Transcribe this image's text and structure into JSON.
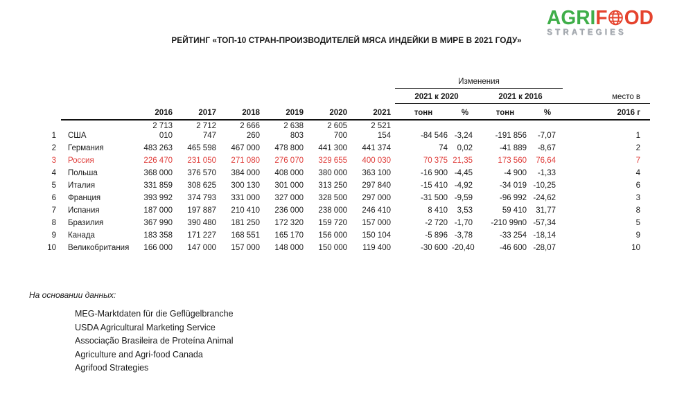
{
  "logo": {
    "agri": "AGRI",
    "f": "F",
    "od": "OD",
    "tagline": "STRATEGIES"
  },
  "title": "РЕЙТИНГ «ТОП-10 СТРАН-ПРОИЗВОДИТЕЛЕЙ МЯСА ИНДЕЙКИ В МИРЕ В 2021 ГОДУ»",
  "table": {
    "changes_header": "Изменения",
    "group_2020": "2021 к 2020",
    "group_2016": "2021 к 2016",
    "place_header_line1": "место в",
    "place_header_line2": "2016 г",
    "year_headers": [
      "2016",
      "2017",
      "2018",
      "2019",
      "2020",
      "2021"
    ],
    "unit_headers": [
      "тонн",
      "%",
      "тонн",
      "%"
    ],
    "rows": [
      {
        "rank": "1",
        "country": "США",
        "values": [
          "2 713\n010",
          "2 712\n747",
          "2 666\n260",
          "2 638\n803",
          "2 605\n700",
          "2 521\n154"
        ],
        "changes": [
          "-84 546",
          "-3,24",
          "-191 856",
          "-7,07"
        ],
        "place": "1",
        "highlighted": false
      },
      {
        "rank": "2",
        "country": "Германия",
        "values": [
          "483 263",
          "465 598",
          "467 000",
          "478 800",
          "441 300",
          "441 374"
        ],
        "changes": [
          "74",
          "0,02",
          "-41 889",
          "-8,67"
        ],
        "place": "2",
        "highlighted": false
      },
      {
        "rank": "3",
        "country": "Россия",
        "values": [
          "226 470",
          "231 050",
          "271 080",
          "276 070",
          "329 655",
          "400 030"
        ],
        "changes": [
          "70 375",
          "21,35",
          "173 560",
          "76,64"
        ],
        "place": "7",
        "highlighted": true
      },
      {
        "rank": "4",
        "country": "Польша",
        "values": [
          "368 000",
          "376 570",
          "384 000",
          "408 000",
          "380 000",
          "363 100"
        ],
        "changes": [
          "-16 900",
          "-4,45",
          "-4 900",
          "-1,33"
        ],
        "place": "4",
        "highlighted": false
      },
      {
        "rank": "5",
        "country": "Италия",
        "values": [
          "331 859",
          "308 625",
          "300 130",
          "301 000",
          "313 250",
          "297 840"
        ],
        "changes": [
          "-15 410",
          "-4,92",
          "-34 019",
          "-10,25"
        ],
        "place": "6",
        "highlighted": false
      },
      {
        "rank": "6",
        "country": "Франция",
        "values": [
          "393 992",
          "374 793",
          "331 000",
          "327 000",
          "328 500",
          "297 000"
        ],
        "changes": [
          "-31 500",
          "-9,59",
          "-96 992",
          "-24,62"
        ],
        "place": "3",
        "highlighted": false
      },
      {
        "rank": "7",
        "country": "Испания",
        "values": [
          "187 000",
          "197 887",
          "210 410",
          "236 000",
          "238 000",
          "246 410"
        ],
        "changes": [
          "8 410",
          "3,53",
          "59 410",
          "31,77"
        ],
        "place": "8",
        "highlighted": false
      },
      {
        "rank": "8",
        "country": "Бразилия",
        "values": [
          "367 990",
          "390 480",
          "181 250",
          "172 320",
          "159 720",
          "157 000"
        ],
        "changes": [
          "-2 720",
          "-1,70",
          "-210 99п0",
          "-57,34"
        ],
        "place": "5",
        "highlighted": false
      },
      {
        "rank": "9",
        "country": "Канада",
        "values": [
          "183 358",
          "171 227",
          "168 551",
          "165 170",
          "156 000",
          "150 104"
        ],
        "changes": [
          "-5 896",
          "-3,78",
          "-33 254",
          "-18,14"
        ],
        "place": "9",
        "highlighted": false
      },
      {
        "rank": "10",
        "country": "Великобритания",
        "values": [
          "166 000",
          "147 000",
          "157 000",
          "148 000",
          "150 000",
          "119 400"
        ],
        "changes": [
          "-30 600",
          "-20,40",
          "-46 600",
          "-28,07"
        ],
        "place": "10",
        "highlighted": false
      }
    ]
  },
  "footer": {
    "heading": "На основании данных:",
    "sources": [
      "MEG-Marktdaten für die Geflügelbranche",
      "USDA Agricultural Marketing Service",
      "Associação Brasileira de Proteína Animal",
      "Agriculture and Agri-food Canada",
      "Agrifood Strategies"
    ]
  },
  "colors": {
    "highlight_red": "#df3936",
    "logo_green": "#3fae49",
    "logo_red": "#e5432e"
  }
}
